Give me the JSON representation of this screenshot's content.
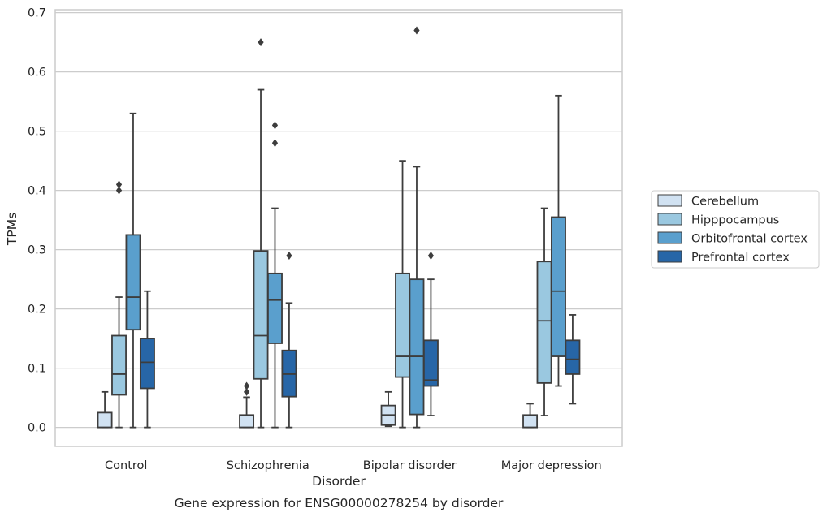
{
  "chart_data": {
    "type": "boxplot",
    "title": "Gene expression for ENSG00000278254 by disorder",
    "xlabel": "Disorder",
    "ylabel": "TPMs",
    "ylim": [
      -0.032,
      0.705
    ],
    "yticks": [
      "0.0",
      "0.1",
      "0.2",
      "0.3",
      "0.4",
      "0.5",
      "0.6",
      "0.7"
    ],
    "grid": "horizontal",
    "legend_position": "right",
    "categories": [
      "Control",
      "Schizophrenia",
      "Bipolar disorder",
      "Major depression"
    ],
    "series": [
      {
        "name": "Cerebellum",
        "color": "#d1e2f2",
        "boxes": [
          {
            "whisker_low": 0.0,
            "q1": 0.0,
            "median": 0.0,
            "q3": 0.025,
            "whisker_high": 0.06,
            "outliers": []
          },
          {
            "whisker_low": 0.0,
            "q1": 0.0,
            "median": 0.0,
            "q3": 0.021,
            "whisker_high": 0.051,
            "outliers": [
              0.06,
              0.07
            ]
          },
          {
            "whisker_low": 0.002,
            "q1": 0.004,
            "median": 0.021,
            "q3": 0.037,
            "whisker_high": 0.06,
            "outliers": []
          },
          {
            "whisker_low": 0.0,
            "q1": 0.0,
            "median": 0.0,
            "q3": 0.021,
            "whisker_high": 0.04,
            "outliers": []
          }
        ]
      },
      {
        "name": "Hipppocampus",
        "color": "#9ac8e0",
        "boxes": [
          {
            "whisker_low": 0.0,
            "q1": 0.055,
            "median": 0.09,
            "q3": 0.155,
            "whisker_high": 0.22,
            "outliers": [
              0.4,
              0.41
            ]
          },
          {
            "whisker_low": 0.0,
            "q1": 0.082,
            "median": 0.155,
            "q3": 0.298,
            "whisker_high": 0.57,
            "outliers": [
              0.65
            ]
          },
          {
            "whisker_low": 0.0,
            "q1": 0.085,
            "median": 0.12,
            "q3": 0.26,
            "whisker_high": 0.45,
            "outliers": []
          },
          {
            "whisker_low": 0.02,
            "q1": 0.075,
            "median": 0.18,
            "q3": 0.28,
            "whisker_high": 0.37,
            "outliers": []
          }
        ]
      },
      {
        "name": "Orbitofrontal cortex",
        "color": "#5a9fcd",
        "boxes": [
          {
            "whisker_low": 0.0,
            "q1": 0.165,
            "median": 0.22,
            "q3": 0.325,
            "whisker_high": 0.53,
            "outliers": []
          },
          {
            "whisker_low": 0.0,
            "q1": 0.142,
            "median": 0.215,
            "q3": 0.26,
            "whisker_high": 0.37,
            "outliers": [
              0.48,
              0.51
            ]
          },
          {
            "whisker_low": 0.0,
            "q1": 0.022,
            "median": 0.12,
            "q3": 0.25,
            "whisker_high": 0.44,
            "outliers": [
              0.67
            ]
          },
          {
            "whisker_low": 0.07,
            "q1": 0.12,
            "median": 0.23,
            "q3": 0.355,
            "whisker_high": 0.56,
            "outliers": []
          }
        ]
      },
      {
        "name": "Prefrontal cortex",
        "color": "#2766a7",
        "boxes": [
          {
            "whisker_low": 0.0,
            "q1": 0.066,
            "median": 0.11,
            "q3": 0.15,
            "whisker_high": 0.23,
            "outliers": []
          },
          {
            "whisker_low": 0.0,
            "q1": 0.052,
            "median": 0.09,
            "q3": 0.13,
            "whisker_high": 0.21,
            "outliers": [
              0.29
            ]
          },
          {
            "whisker_low": 0.02,
            "q1": 0.07,
            "median": 0.08,
            "q3": 0.147,
            "whisker_high": 0.25,
            "outliers": [
              0.29
            ]
          },
          {
            "whisker_low": 0.04,
            "q1": 0.09,
            "median": 0.115,
            "q3": 0.147,
            "whisker_high": 0.19,
            "outliers": []
          }
        ]
      }
    ]
  }
}
